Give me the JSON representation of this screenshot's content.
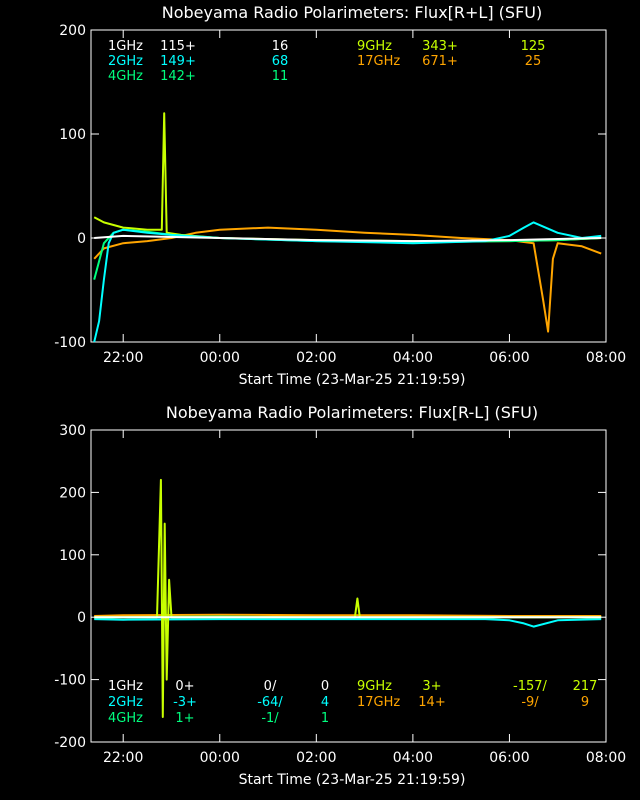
{
  "colors": {
    "background": "#000000",
    "axes": "#ffffff",
    "1GHz": "#ffffff",
    "2GHz": "#00ffff",
    "4GHz": "#00ff7f",
    "9GHz": "#c8ff00",
    "17GHz": "#ffa500"
  },
  "chart_data": [
    {
      "type": "line",
      "title": "Nobeyama Radio Polarimeters: Flux[R+L] (SFU)",
      "xlabel": "Start Time (23-Mar-25 21:19:59)",
      "ylabel": "",
      "x_ticks": [
        "22:00",
        "00:00",
        "02:00",
        "04:00",
        "06:00",
        "08:00"
      ],
      "x_tick_hours": [
        22,
        24,
        26,
        28,
        30,
        32
      ],
      "xlim_hours": [
        21.333,
        32.0
      ],
      "y_ticks": [
        "200",
        "100",
        "0",
        "-100"
      ],
      "y_tick_values": [
        200,
        100,
        0,
        -100
      ],
      "ylim": [
        -100,
        200
      ],
      "legend": [
        {
          "name": "1GHz",
          "a": "115+",
          "b": "16"
        },
        {
          "name": "2GHz",
          "a": "149+",
          "b": "68"
        },
        {
          "name": "4GHz",
          "a": "142+",
          "b": "11"
        },
        {
          "name": "9GHz",
          "a": "343+",
          "b": "125"
        },
        {
          "name": "17GHz",
          "a": "671+",
          "b": "25"
        }
      ],
      "series": [
        {
          "name": "17GHz",
          "x": [
            21.4,
            21.6,
            22.0,
            22.5,
            23.0,
            23.5,
            24.0,
            25.0,
            26.0,
            27.0,
            28.0,
            29.0,
            30.0,
            30.5,
            30.7,
            30.8,
            30.9,
            31.0,
            31.5,
            31.9
          ],
          "y": [
            -20,
            -10,
            -5,
            -3,
            0,
            5,
            8,
            10,
            8,
            5,
            3,
            0,
            -2,
            -5,
            -60,
            -90,
            -20,
            -5,
            -8,
            -15
          ]
        },
        {
          "name": "9GHz",
          "x": [
            21.4,
            21.6,
            22.0,
            22.5,
            22.8,
            22.85,
            22.9,
            23.2,
            24.0,
            26.0,
            28.0,
            30.0,
            31.0,
            31.9
          ],
          "y": [
            20,
            15,
            10,
            8,
            8,
            120,
            5,
            3,
            0,
            -2,
            -3,
            -3,
            -2,
            0
          ]
        },
        {
          "name": "4GHz",
          "x": [
            21.4,
            21.6,
            21.8,
            22.0,
            22.5,
            23.0,
            24.0,
            26.0,
            28.0,
            30.0,
            31.0,
            31.9
          ],
          "y": [
            -40,
            -5,
            5,
            8,
            6,
            3,
            0,
            -3,
            -4,
            -3,
            -2,
            0
          ]
        },
        {
          "name": "2GHz",
          "x": [
            21.4,
            21.5,
            21.6,
            21.7,
            21.8,
            22.0,
            22.5,
            23.0,
            24.0,
            26.0,
            28.0,
            29.5,
            30.0,
            30.3,
            30.5,
            31.0,
            31.5,
            31.9
          ],
          "y": [
            -100,
            -80,
            -40,
            -5,
            5,
            8,
            5,
            3,
            0,
            -3,
            -5,
            -3,
            2,
            10,
            15,
            5,
            0,
            2
          ]
        },
        {
          "name": "1GHz",
          "x": [
            21.4,
            22.0,
            24.0,
            26.0,
            28.0,
            30.0,
            31.9
          ],
          "y": [
            0,
            2,
            0,
            -2,
            -3,
            -2,
            0
          ]
        }
      ]
    },
    {
      "type": "line",
      "title": "Nobeyama Radio Polarimeters: Flux[R-L] (SFU)",
      "xlabel": "Start Time (23-Mar-25 21:19:59)",
      "ylabel": "",
      "x_ticks": [
        "22:00",
        "00:00",
        "02:00",
        "04:00",
        "06:00",
        "08:00"
      ],
      "x_tick_hours": [
        22,
        24,
        26,
        28,
        30,
        32
      ],
      "xlim_hours": [
        21.333,
        32.0
      ],
      "y_ticks": [
        "300",
        "200",
        "100",
        "0",
        "-100",
        "-200"
      ],
      "y_tick_values": [
        300,
        200,
        100,
        0,
        -100,
        -200
      ],
      "ylim": [
        -200,
        300
      ],
      "legend": [
        {
          "name": "1GHz",
          "a": "0+",
          "b": "0/",
          "c": "0"
        },
        {
          "name": "2GHz",
          "a": "-3+",
          "b": "-64/",
          "c": "4"
        },
        {
          "name": "4GHz",
          "a": "1+",
          "b": "-1/",
          "c": "1"
        },
        {
          "name": "9GHz",
          "a": "3+",
          "b": "-157/",
          "c": "217"
        },
        {
          "name": "17GHz",
          "a": "14+",
          "b": "-9/",
          "c": "9"
        }
      ],
      "series": [
        {
          "name": "17GHz",
          "x": [
            21.4,
            22.0,
            24.0,
            26.0,
            28.0,
            30.0,
            31.9
          ],
          "y": [
            2,
            3,
            4,
            3,
            3,
            2,
            2
          ]
        },
        {
          "name": "4GHz",
          "x": [
            21.4,
            22.0,
            24.0,
            26.0,
            28.0,
            30.0,
            31.9
          ],
          "y": [
            0,
            0,
            1,
            0,
            0,
            0,
            0
          ]
        },
        {
          "name": "2GHz",
          "x": [
            21.4,
            22.0,
            24.0,
            26.0,
            28.0,
            29.5,
            30.0,
            30.3,
            30.5,
            31.0,
            31.9
          ],
          "y": [
            -3,
            -4,
            -3,
            -3,
            -3,
            -3,
            -5,
            -10,
            -15,
            -5,
            -3
          ]
        },
        {
          "name": "9GHz",
          "x": [
            21.4,
            22.0,
            22.7,
            22.78,
            22.82,
            22.86,
            22.9,
            22.95,
            23.0,
            24.0,
            26.0,
            26.8,
            26.85,
            26.9,
            28.0,
            30.0,
            31.9
          ],
          "y": [
            0,
            0,
            0,
            220,
            -160,
            150,
            -100,
            60,
            0,
            0,
            0,
            0,
            30,
            0,
            0,
            0,
            0
          ]
        },
        {
          "name": "1GHz",
          "x": [
            21.4,
            24.0,
            28.0,
            31.9
          ],
          "y": [
            0,
            0,
            0,
            0
          ]
        }
      ]
    }
  ]
}
